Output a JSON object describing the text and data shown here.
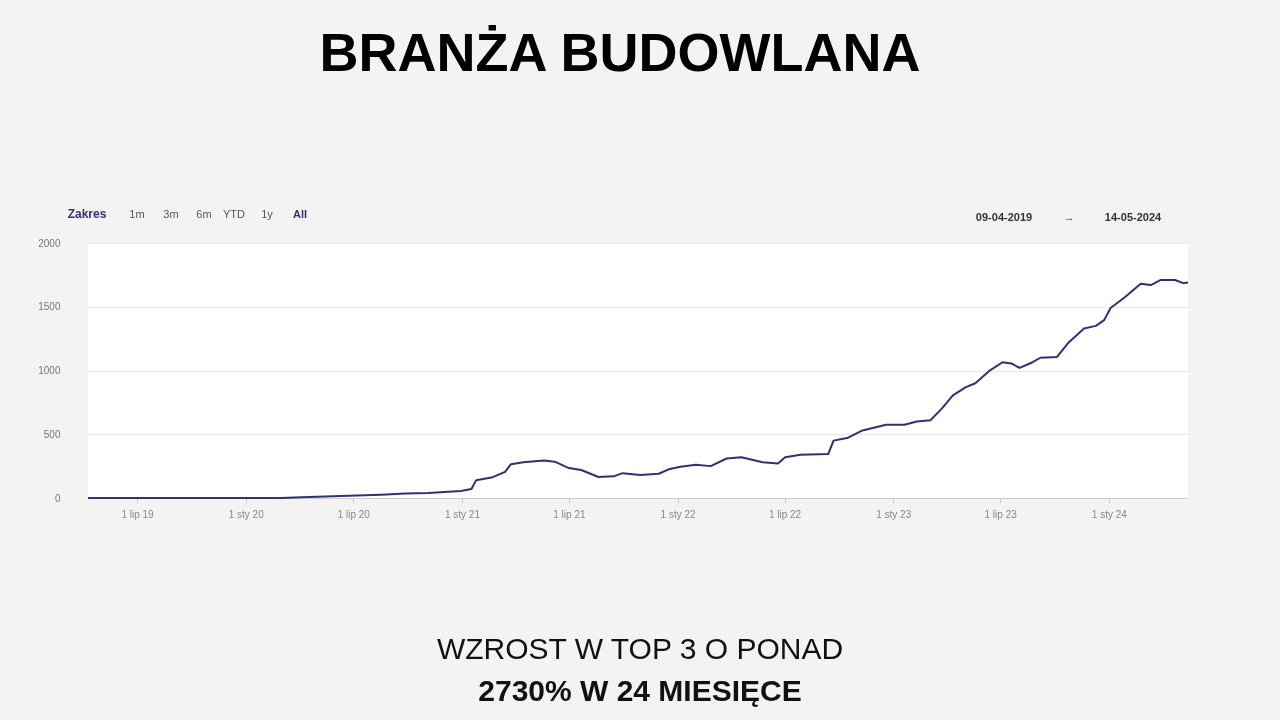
{
  "chart_data": {
    "type": "line",
    "title": "BRANŻA BUDOWLANA",
    "annotations": [
      "Zakres",
      "1m",
      "3m",
      "6m",
      "YTD",
      "1y",
      "All",
      "09-04-2019",
      "→",
      "14-05-2024",
      "WZROST W TOP 3 O PONAD",
      "2730% W 24 MIESIĘCE"
    ],
    "x": [
      "2019-04-09",
      "2020-03-01",
      "2020-04-05",
      "2020-06-10",
      "2020-08-17",
      "2020-09-27",
      "2020-11-05",
      "2020-12-30",
      "2021-01-17",
      "2021-01-25",
      "2021-02-20",
      "2021-03-15",
      "2021-03-25",
      "2021-04-15",
      "2021-05-20",
      "2021-06-07",
      "2021-07-01",
      "2021-07-22",
      "2021-08-20",
      "2021-09-15",
      "2021-09-30",
      "2021-10-30",
      "2021-11-30",
      "2021-12-17",
      "2022-01-06",
      "2022-02-01",
      "2022-02-26",
      "2022-03-25",
      "2022-04-19",
      "2022-05-25",
      "2022-06-20",
      "2022-07-02",
      "2022-07-28",
      "2022-09-13",
      "2022-09-22",
      "2022-10-15",
      "2022-11-10",
      "2022-12-20",
      "2023-01-20",
      "2023-02-10",
      "2023-03-05",
      "2023-03-25",
      "2023-04-12",
      "2023-05-04",
      "2023-05-20",
      "2023-06-12",
      "2023-07-05",
      "2023-07-20",
      "2023-08-03",
      "2023-08-25",
      "2023-09-07",
      "2023-10-05",
      "2023-10-25",
      "2023-11-20",
      "2023-12-10",
      "2023-12-24",
      "2024-01-04",
      "2024-01-28",
      "2024-02-15",
      "2024-02-24",
      "2024-03-12",
      "2024-03-29",
      "2024-04-22",
      "2024-05-06",
      "2024-05-14"
    ],
    "series": [
      {
        "color": "#2e3270",
        "values": [
          0,
          0,
          5,
          15,
          25,
          35,
          40,
          55,
          70,
          140,
          160,
          205,
          265,
          280,
          295,
          285,
          235,
          220,
          165,
          170,
          195,
          180,
          190,
          225,
          245,
          260,
          250,
          310,
          320,
          280,
          270,
          320,
          340,
          345,
          450,
          470,
          530,
          575,
          575,
          600,
          610,
          705,
          805,
          870,
          900,
          995,
          1065,
          1055,
          1020,
          1065,
          1100,
          1105,
          1220,
          1330,
          1350,
          1395,
          1490,
          1575,
          1645,
          1680,
          1670,
          1710,
          1710,
          1685,
          1690
        ]
      }
    ],
    "xlim": [
      "2019-04-09",
      "2024-05-14"
    ],
    "xticks": [
      {
        "value": "2019-07-01",
        "label": "1 lip 19"
      },
      {
        "value": "2020-01-01",
        "label": "1 sty 20"
      },
      {
        "value": "2020-07-01",
        "label": "1 lip 20"
      },
      {
        "value": "2021-01-01",
        "label": "1 sty 21"
      },
      {
        "value": "2021-07-01",
        "label": "1 lip 21"
      },
      {
        "value": "2022-01-01",
        "label": "1 sty 22"
      },
      {
        "value": "2022-07-01",
        "label": "1 lip 22"
      },
      {
        "value": "2023-01-01",
        "label": "1 sty 23"
      },
      {
        "value": "2023-07-01",
        "label": "1 lip 23"
      },
      {
        "value": "2024-01-01",
        "label": "1 sty 24"
      }
    ],
    "ylim": [
      0,
      2000
    ],
    "yticks": [
      0,
      500,
      1000,
      1500,
      2000
    ],
    "grid": "y",
    "legend": false,
    "marker": "none",
    "line_style": "solid"
  }
}
